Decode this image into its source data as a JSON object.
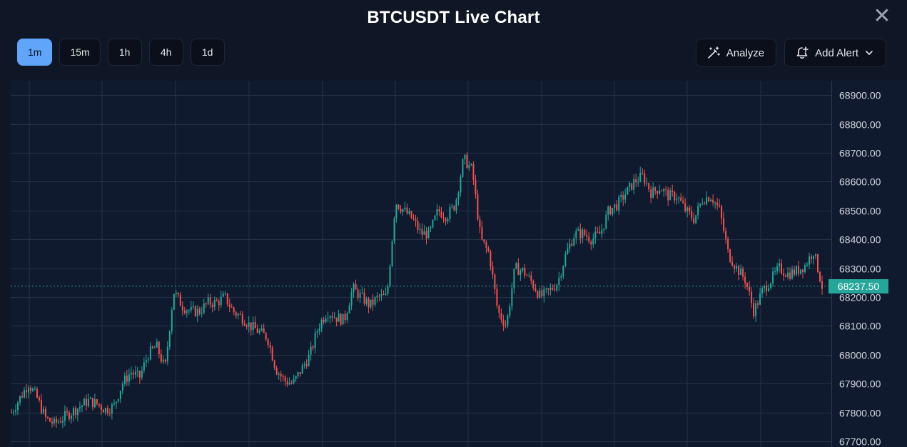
{
  "header": {
    "title": "BTCUSDT Live Chart",
    "close_symbol": "✕"
  },
  "timeframes": [
    {
      "label": "1m",
      "active": true
    },
    {
      "label": "15m",
      "active": false
    },
    {
      "label": "1h",
      "active": false
    },
    {
      "label": "4h",
      "active": false
    },
    {
      "label": "1d",
      "active": false
    }
  ],
  "actions": {
    "analyze_label": "Analyze",
    "add_alert_label": "Add Alert",
    "analyze_icon": "magic-wand-icon",
    "alert_icon": "bell-plus-icon",
    "dropdown_icon": "chevron-down-icon"
  },
  "colors": {
    "up": "#26a69a",
    "down": "#ef5350",
    "active_timeframe": "#60a5fa",
    "price_tag": "#26a69a",
    "grid": "#253349"
  },
  "chart_data": {
    "type": "candlestick",
    "symbol": "BTCUSDT",
    "interval": "1m",
    "ylim": [
      67680,
      68950
    ],
    "y_ticks": [
      "68900.00",
      "68800.00",
      "68700.00",
      "68600.00",
      "68500.00",
      "68400.00",
      "68300.00",
      "68200.00",
      "68100.00",
      "68000.00",
      "67900.00",
      "67800.00",
      "67700.00"
    ],
    "current_price": "68237.50",
    "grid": true,
    "close_path": [
      67800,
      67850,
      67900,
      67850,
      67780,
      67760,
      67780,
      67800,
      67820,
      67840,
      67830,
      67810,
      67820,
      67900,
      67940,
      67920,
      68000,
      68030,
      67950,
      68220,
      68170,
      68150,
      68150,
      68180,
      68180,
      68200,
      68150,
      68130,
      68100,
      68080,
      68060,
      67950,
      67910,
      67900,
      67950,
      68000,
      68100,
      68150,
      68130,
      68120,
      68230,
      68200,
      68170,
      68200,
      68200,
      68530,
      68500,
      68470,
      68420,
      68420,
      68500,
      68480,
      68520,
      68680,
      68640,
      68400,
      68350,
      68150,
      68100,
      68300,
      68290,
      68250,
      68200,
      68220,
      68250,
      68350,
      68420,
      68420,
      68400,
      68420,
      68500,
      68520,
      68560,
      68600,
      68620,
      68560,
      68580,
      68550,
      68550,
      68500,
      68470,
      68540,
      68550,
      68500,
      68350,
      68300,
      68260,
      68150,
      68220,
      68260,
      68300,
      68280,
      68290,
      68310,
      68360,
      68237.5
    ]
  }
}
